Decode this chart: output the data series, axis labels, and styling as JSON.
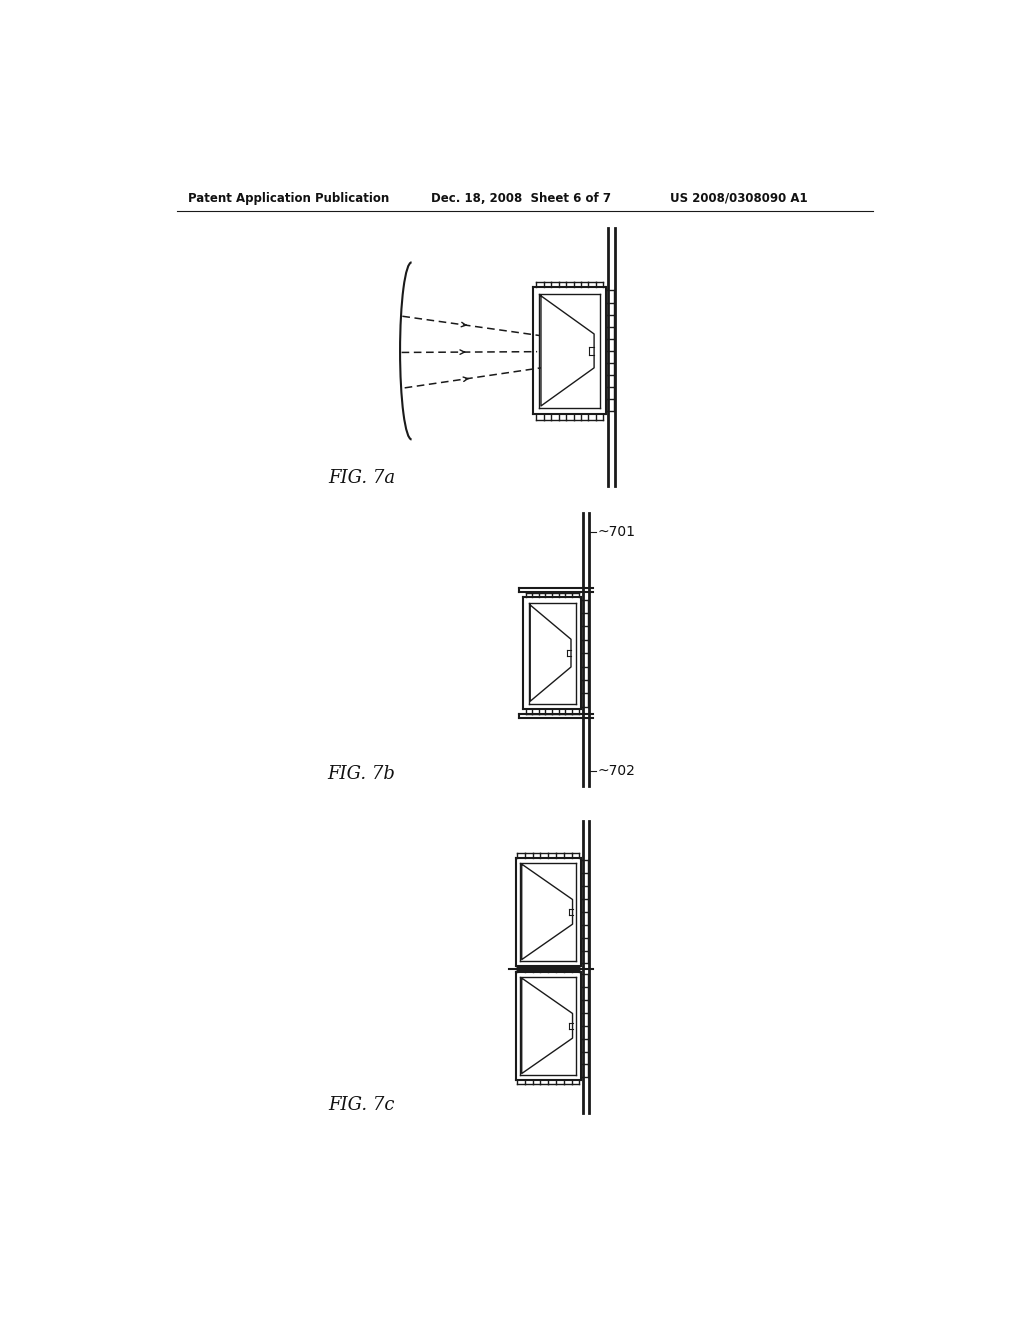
{
  "header_left": "Patent Application Publication",
  "header_mid": "Dec. 18, 2008  Sheet 6 of 7",
  "header_right": "US 2008/0308090 A1",
  "fig7a_label": "FIG. 7a",
  "fig7b_label": "FIG. 7b",
  "fig7c_label": "FIG. 7c",
  "label_701": "~701",
  "label_702": "~702",
  "bg_color": "#ffffff",
  "line_color": "#1a1a1a"
}
